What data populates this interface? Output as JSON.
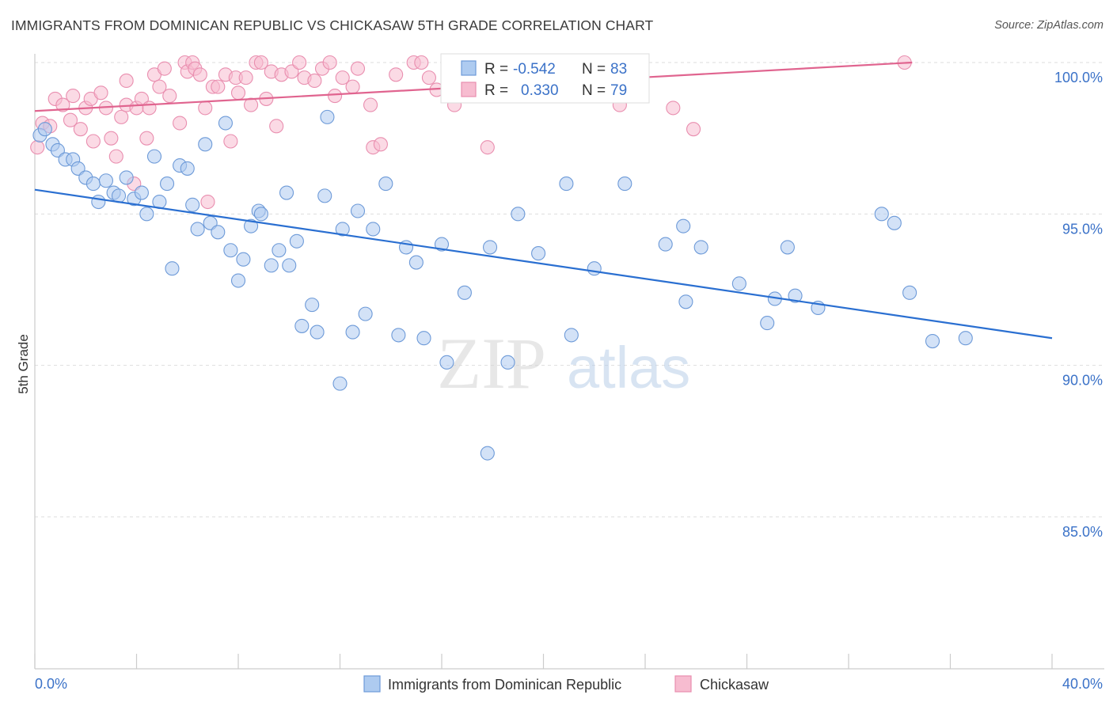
{
  "title": "IMMIGRANTS FROM DOMINICAN REPUBLIC VS CHICKASAW 5TH GRADE CORRELATION CHART",
  "source": "Source: ZipAtlas.com",
  "watermark": {
    "zip": "ZIP",
    "atlas": "atlas"
  },
  "colors": {
    "blue_fill": "#aecbf0",
    "blue_stroke": "#6d9ad8",
    "blue_line": "#2a6fd1",
    "pink_fill": "#f7bcd0",
    "pink_stroke": "#e98eaf",
    "pink_line": "#e0648f",
    "tick_text": "#3b72c8",
    "grid": "#dddddd"
  },
  "stats": {
    "r_label": "R =",
    "n_label": "N =",
    "blue": {
      "r": "-0.542",
      "n": "83"
    },
    "pink": {
      "r": "0.330",
      "n": "79"
    }
  },
  "chart_data": {
    "type": "scatter",
    "title": "IMMIGRANTS FROM DOMINICAN REPUBLIC VS CHICKASAW 5TH GRADE CORRELATION CHART",
    "xlabel": "",
    "ylabel": "5th Grade",
    "x_tick_labels": [
      "0.0%",
      "40.0%"
    ],
    "y_tick_labels": [
      "100.0%",
      "95.0%",
      "90.0%",
      "85.0%"
    ],
    "y_ticks": [
      100,
      95,
      90,
      85
    ],
    "xlim": [
      0,
      40
    ],
    "ylim": [
      80,
      100.5
    ],
    "grid": true,
    "legend_position": "bottom-center",
    "series": [
      {
        "name": "Immigrants from Dominican Republic",
        "color": "blue",
        "trend": {
          "x": [
            0,
            40
          ],
          "y": [
            95.8,
            90.9
          ]
        },
        "points": [
          [
            0.2,
            97.6
          ],
          [
            0.4,
            97.8
          ],
          [
            0.7,
            97.3
          ],
          [
            0.9,
            97.1
          ],
          [
            1.2,
            96.8
          ],
          [
            1.5,
            96.8
          ],
          [
            1.7,
            96.5
          ],
          [
            2.0,
            96.2
          ],
          [
            2.3,
            96.0
          ],
          [
            2.5,
            95.4
          ],
          [
            2.8,
            96.1
          ],
          [
            3.1,
            95.7
          ],
          [
            3.3,
            95.6
          ],
          [
            3.6,
            96.2
          ],
          [
            3.9,
            95.5
          ],
          [
            4.2,
            95.7
          ],
          [
            4.4,
            95.0
          ],
          [
            4.7,
            96.9
          ],
          [
            4.9,
            95.4
          ],
          [
            5.2,
            96.0
          ],
          [
            5.4,
            93.2
          ],
          [
            5.7,
            96.6
          ],
          [
            6.0,
            96.5
          ],
          [
            6.2,
            95.3
          ],
          [
            6.4,
            94.5
          ],
          [
            6.7,
            97.3
          ],
          [
            6.9,
            94.7
          ],
          [
            7.2,
            94.4
          ],
          [
            7.5,
            98.0
          ],
          [
            7.7,
            93.8
          ],
          [
            8.0,
            92.8
          ],
          [
            8.2,
            93.5
          ],
          [
            8.5,
            94.6
          ],
          [
            8.8,
            95.1
          ],
          [
            8.9,
            95.0
          ],
          [
            9.3,
            93.3
          ],
          [
            9.6,
            93.8
          ],
          [
            9.9,
            95.7
          ],
          [
            10.0,
            93.3
          ],
          [
            10.3,
            94.1
          ],
          [
            10.5,
            91.3
          ],
          [
            10.9,
            92.0
          ],
          [
            11.1,
            91.1
          ],
          [
            11.4,
            95.6
          ],
          [
            11.5,
            98.2
          ],
          [
            12.0,
            89.4
          ],
          [
            12.1,
            94.5
          ],
          [
            12.5,
            91.1
          ],
          [
            12.7,
            95.1
          ],
          [
            13.0,
            91.7
          ],
          [
            13.3,
            94.5
          ],
          [
            13.8,
            96.0
          ],
          [
            14.3,
            91.0
          ],
          [
            14.6,
            93.9
          ],
          [
            15.0,
            93.4
          ],
          [
            15.3,
            90.9
          ],
          [
            16.0,
            94.0
          ],
          [
            16.2,
            90.1
          ],
          [
            16.9,
            92.4
          ],
          [
            17.8,
            87.1
          ],
          [
            17.9,
            93.9
          ],
          [
            18.6,
            90.1
          ],
          [
            19.0,
            95.0
          ],
          [
            19.8,
            93.7
          ],
          [
            20.9,
            96.0
          ],
          [
            21.1,
            91.0
          ],
          [
            22.0,
            93.2
          ],
          [
            23.2,
            96.0
          ],
          [
            24.8,
            94.0
          ],
          [
            25.5,
            94.6
          ],
          [
            25.6,
            92.1
          ],
          [
            26.2,
            93.9
          ],
          [
            27.7,
            92.7
          ],
          [
            28.8,
            91.4
          ],
          [
            29.1,
            92.2
          ],
          [
            29.6,
            93.9
          ],
          [
            29.9,
            92.3
          ],
          [
            30.8,
            91.9
          ],
          [
            33.3,
            95.0
          ],
          [
            33.8,
            94.7
          ],
          [
            34.4,
            92.4
          ],
          [
            35.3,
            90.8
          ],
          [
            36.6,
            90.9
          ]
        ]
      },
      {
        "name": "Chickasaw",
        "color": "pink",
        "trend": {
          "x": [
            0,
            34.5
          ],
          "y": [
            98.4,
            100
          ]
        },
        "points": [
          [
            0.1,
            97.2
          ],
          [
            0.3,
            98.0
          ],
          [
            0.6,
            97.9
          ],
          [
            0.8,
            98.8
          ],
          [
            1.1,
            98.6
          ],
          [
            1.4,
            98.1
          ],
          [
            1.5,
            98.9
          ],
          [
            1.8,
            97.8
          ],
          [
            2.0,
            98.5
          ],
          [
            2.2,
            98.8
          ],
          [
            2.3,
            97.4
          ],
          [
            2.6,
            99.0
          ],
          [
            2.8,
            98.5
          ],
          [
            3.0,
            97.5
          ],
          [
            3.2,
            96.9
          ],
          [
            3.4,
            98.2
          ],
          [
            3.6,
            98.6
          ],
          [
            3.6,
            99.4
          ],
          [
            3.9,
            96.0
          ],
          [
            4.0,
            98.5
          ],
          [
            4.2,
            98.8
          ],
          [
            4.4,
            97.5
          ],
          [
            4.5,
            98.5
          ],
          [
            4.7,
            99.6
          ],
          [
            4.9,
            99.2
          ],
          [
            5.1,
            99.8
          ],
          [
            5.3,
            98.9
          ],
          [
            5.7,
            98.0
          ],
          [
            5.9,
            100.0
          ],
          [
            6.0,
            99.7
          ],
          [
            6.2,
            100.0
          ],
          [
            6.3,
            99.8
          ],
          [
            6.5,
            99.6
          ],
          [
            6.7,
            98.5
          ],
          [
            6.8,
            95.4
          ],
          [
            7.0,
            99.2
          ],
          [
            7.2,
            99.2
          ],
          [
            7.5,
            99.6
          ],
          [
            7.7,
            97.4
          ],
          [
            7.9,
            99.5
          ],
          [
            8.0,
            99.0
          ],
          [
            8.3,
            99.5
          ],
          [
            8.5,
            98.6
          ],
          [
            8.7,
            100.0
          ],
          [
            8.9,
            100.0
          ],
          [
            9.1,
            98.8
          ],
          [
            9.3,
            99.7
          ],
          [
            9.5,
            97.9
          ],
          [
            9.7,
            99.6
          ],
          [
            10.1,
            99.7
          ],
          [
            10.4,
            100.0
          ],
          [
            10.6,
            99.5
          ],
          [
            11.0,
            99.4
          ],
          [
            11.3,
            99.8
          ],
          [
            11.6,
            100.0
          ],
          [
            11.8,
            98.9
          ],
          [
            12.1,
            99.5
          ],
          [
            12.5,
            99.2
          ],
          [
            12.7,
            99.8
          ],
          [
            13.2,
            98.6
          ],
          [
            13.3,
            97.2
          ],
          [
            13.6,
            97.3
          ],
          [
            14.2,
            99.6
          ],
          [
            14.9,
            100.0
          ],
          [
            15.2,
            100.0
          ],
          [
            15.5,
            99.5
          ],
          [
            15.8,
            99.1
          ],
          [
            16.5,
            98.6
          ],
          [
            16.9,
            100.0
          ],
          [
            17.4,
            99.3
          ],
          [
            17.8,
            97.2
          ],
          [
            19.0,
            99.6
          ],
          [
            19.5,
            99.2
          ],
          [
            21.3,
            99.5
          ],
          [
            22.0,
            99.6
          ],
          [
            23.0,
            98.6
          ],
          [
            23.5,
            99.8
          ],
          [
            25.1,
            98.5
          ],
          [
            25.9,
            97.8
          ],
          [
            34.2,
            100.0
          ]
        ]
      }
    ]
  },
  "legend": {
    "items": [
      {
        "label": "Immigrants from Dominican Republic",
        "color": "blue"
      },
      {
        "label": "Chickasaw",
        "color": "pink"
      }
    ]
  }
}
